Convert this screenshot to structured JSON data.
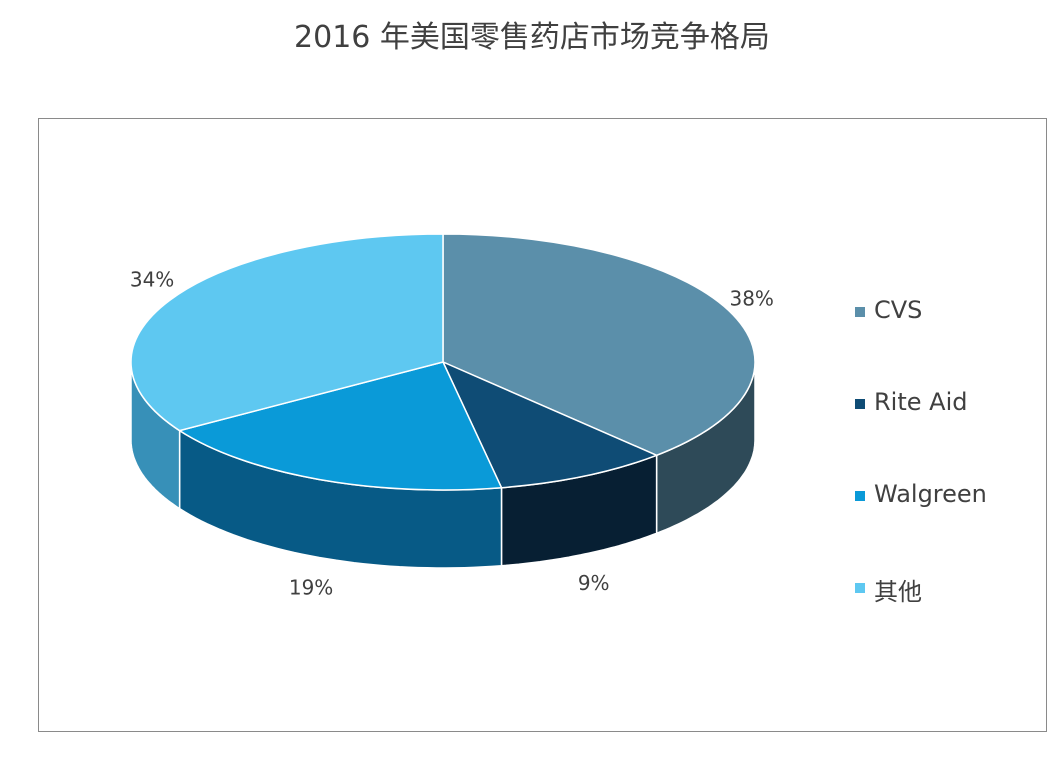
{
  "chart_data": {
    "type": "pie",
    "title": "2016 年美国零售药店市场竞争格局",
    "legend_position": "right",
    "slices": [
      {
        "name": "CVS",
        "value": 38,
        "label": "38%",
        "color": "#5b8faa",
        "side_color": "#2e4a58"
      },
      {
        "name": "Rite Aid",
        "value": 9,
        "label": "9%",
        "color": "#0f4c75",
        "side_color": "#071f33"
      },
      {
        "name": "Walgreen",
        "value": 19,
        "label": "19%",
        "color": "#0a9ad8",
        "side_color": "#075a86"
      },
      {
        "name": "其他",
        "value": 34,
        "label": "34%",
        "color": "#5ec8f1",
        "side_color": "#3790b8"
      }
    ]
  }
}
